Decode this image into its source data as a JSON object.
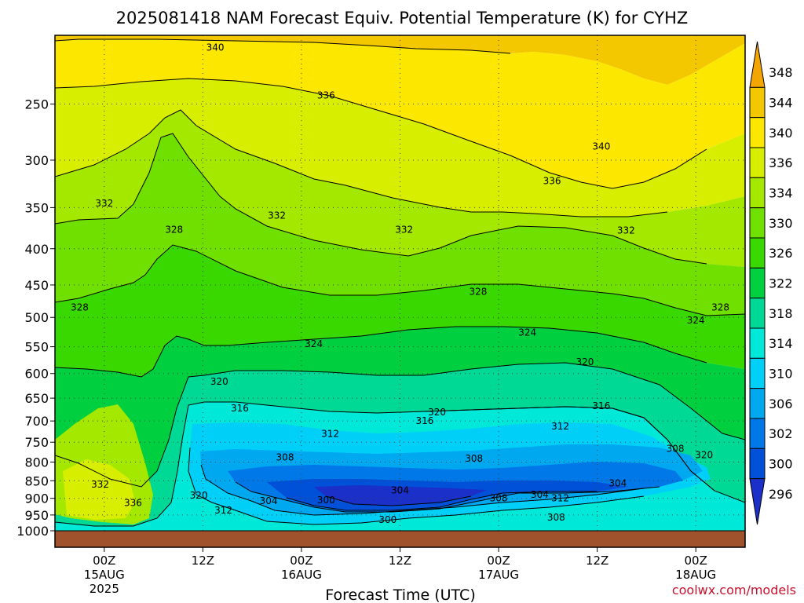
{
  "chart_data": {
    "type": "heatmap",
    "title": "2025081418 NAM Forecast Equiv. Potential Temperature (K) for CYHZ",
    "xlabel": "Forecast Time (UTC)",
    "ylabel": "",
    "credit": "coolwx.com/models",
    "x_start_year": "2025",
    "x_ticks": [
      {
        "hour": 6,
        "l1": "00Z",
        "l2": "15AUG",
        "l3": "2025"
      },
      {
        "hour": 18,
        "l1": "12Z",
        "l2": "",
        "l3": ""
      },
      {
        "hour": 30,
        "l1": "00Z",
        "l2": "16AUG",
        "l3": ""
      },
      {
        "hour": 42,
        "l1": "12Z",
        "l2": "",
        "l3": ""
      },
      {
        "hour": 54,
        "l1": "00Z",
        "l2": "17AUG",
        "l3": ""
      },
      {
        "hour": 66,
        "l1": "12Z",
        "l2": "",
        "l3": ""
      },
      {
        "hour": 78,
        "l1": "00Z",
        "l2": "18AUG",
        "l3": ""
      }
    ],
    "x_range": [
      0,
      84
    ],
    "y_ticks": [
      "250",
      "300",
      "350",
      "400",
      "450",
      "500",
      "550",
      "600",
      "650",
      "700",
      "750",
      "800",
      "850",
      "900",
      "950",
      "1000"
    ],
    "y_range_hpa": [
      200,
      1000
    ],
    "y_scale": "log-pressure",
    "grid": true,
    "colorbar": {
      "levels": [
        "348",
        "344",
        "340",
        "336",
        "334",
        "330",
        "326",
        "322",
        "318",
        "314",
        "310",
        "306",
        "302",
        "300",
        "296"
      ],
      "colors": [
        "#f4a600",
        "#f4c800",
        "#fbe700",
        "#d8ee00",
        "#a4e800",
        "#6fe000",
        "#38d800",
        "#00d040",
        "#00d896",
        "#00e8d8",
        "#00d0f8",
        "#00a8f0",
        "#0078e8",
        "#0050d8",
        "#1a30c8"
      ]
    },
    "ground_color": "#a0522d",
    "contour_labels": [
      {
        "text": "340",
        "t": 19.5,
        "p": 208
      },
      {
        "text": "336",
        "t": 33,
        "p": 243
      },
      {
        "text": "340",
        "t": 66.5,
        "p": 287
      },
      {
        "text": "336",
        "t": 60.5,
        "p": 321
      },
      {
        "text": "332",
        "t": 6,
        "p": 345
      },
      {
        "text": "332",
        "t": 27,
        "p": 359
      },
      {
        "text": "332",
        "t": 42.5,
        "p": 376
      },
      {
        "text": "332",
        "t": 69.5,
        "p": 377
      },
      {
        "text": "328",
        "t": 14.5,
        "p": 376
      },
      {
        "text": "328",
        "t": 51.5,
        "p": 460
      },
      {
        "text": "328",
        "t": 3,
        "p": 484
      },
      {
        "text": "328",
        "t": 81,
        "p": 484
      },
      {
        "text": "324",
        "t": 78,
        "p": 505
      },
      {
        "text": "324",
        "t": 57.5,
        "p": 525
      },
      {
        "text": "324",
        "t": 31.5,
        "p": 545
      },
      {
        "text": "320",
        "t": 64.5,
        "p": 578
      },
      {
        "text": "320",
        "t": 20,
        "p": 616
      },
      {
        "text": "316",
        "t": 22.5,
        "p": 672
      },
      {
        "text": "320",
        "t": 46.5,
        "p": 680
      },
      {
        "text": "316",
        "t": 45,
        "p": 700
      },
      {
        "text": "316",
        "t": 66.5,
        "p": 667
      },
      {
        "text": "312",
        "t": 33.5,
        "p": 730
      },
      {
        "text": "312",
        "t": 61.5,
        "p": 712
      },
      {
        "text": "308",
        "t": 28,
        "p": 788
      },
      {
        "text": "308",
        "t": 51,
        "p": 791
      },
      {
        "text": "308",
        "t": 75.5,
        "p": 766
      },
      {
        "text": "320",
        "t": 79,
        "p": 782
      },
      {
        "text": "332",
        "t": 5.5,
        "p": 860
      },
      {
        "text": "304",
        "t": 42,
        "p": 877
      },
      {
        "text": "304",
        "t": 68.5,
        "p": 857
      },
      {
        "text": "300",
        "t": 33,
        "p": 905
      },
      {
        "text": "300",
        "t": 40.5,
        "p": 965
      },
      {
        "text": "304",
        "t": 26,
        "p": 908
      },
      {
        "text": "308",
        "t": 54,
        "p": 899
      },
      {
        "text": "304",
        "t": 59,
        "p": 889
      },
      {
        "text": "312",
        "t": 61.5,
        "p": 899
      },
      {
        "text": "320",
        "t": 17.5,
        "p": 892
      },
      {
        "text": "312",
        "t": 20.5,
        "p": 936
      },
      {
        "text": "336",
        "t": 9.5,
        "p": 914
      },
      {
        "text": "308",
        "t": 61,
        "p": 958
      }
    ]
  }
}
